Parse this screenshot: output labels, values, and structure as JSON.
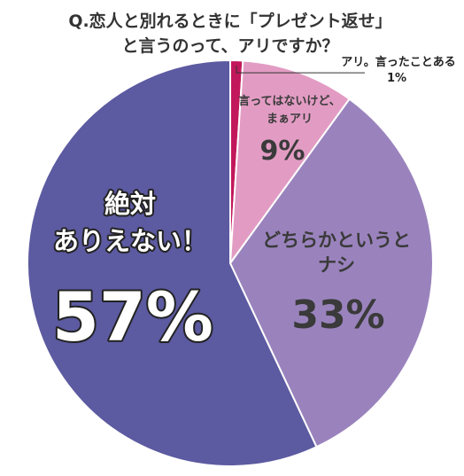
{
  "title": {
    "line1": "Q.恋人と別れるときに「プレゼント返せ」",
    "line2": "と言うのって、アリですか？"
  },
  "chart_data": {
    "type": "pie",
    "slices": [
      {
        "label_lines": [
          "アリ。言ったことある"
        ],
        "value": 1,
        "value_text": "1%",
        "color": "#c2185b"
      },
      {
        "label_lines": [
          "言ってはないけど、",
          "まぁアリ"
        ],
        "value": 9,
        "value_text": "9%",
        "color": "#e29cc3"
      },
      {
        "label_lines": [
          "どちらかというと",
          "ナシ"
        ],
        "value": 33,
        "value_text": "33%",
        "color": "#9a83bd"
      },
      {
        "label_lines": [
          "絶対",
          "ありえない！"
        ],
        "value": 57,
        "value_text": "57%",
        "color": "#5c5aa0"
      }
    ]
  }
}
